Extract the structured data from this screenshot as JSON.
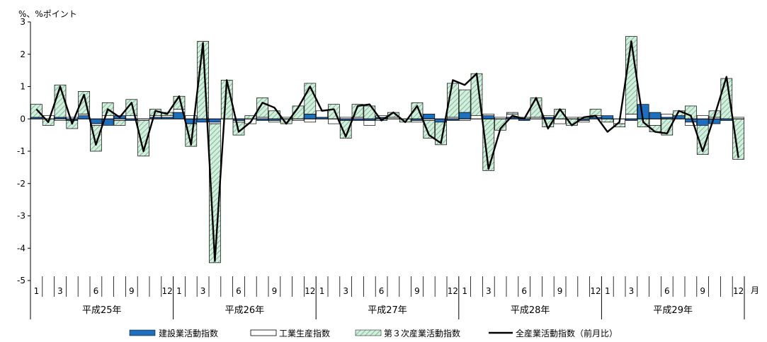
{
  "chart_data": {
    "type": "bar",
    "stacked": true,
    "unit_label": "%、%ポイント",
    "month_unit": "月",
    "ylim": [
      -5,
      3
    ],
    "y_ticks": [
      "3",
      "2",
      "1",
      "0",
      "-1",
      "-2",
      "-3",
      "-4",
      "-5"
    ],
    "month_tick_labels": [
      "1",
      "",
      "3",
      "",
      "",
      "6",
      "",
      "",
      "9",
      "",
      "",
      "12"
    ],
    "years": [
      "平成25年",
      "平成26年",
      "平成27年",
      "平成28年",
      "平成29年"
    ],
    "series": [
      {
        "name": "建設業活動指数",
        "values": [
          0.05,
          0.0,
          0.05,
          -0.05,
          0.1,
          -0.15,
          -0.2,
          0.1,
          -0.05,
          0.0,
          0.05,
          0.05,
          0.2,
          -0.15,
          -0.1,
          -0.1,
          0.0,
          -0.05,
          0.0,
          -0.05,
          -0.05,
          0.0,
          0.0,
          0.15,
          0.05,
          0.0,
          -0.05,
          -0.05,
          -0.05,
          0.05,
          0.0,
          0.0,
          -0.05,
          0.15,
          -0.1,
          -0.05,
          0.2,
          0.0,
          0.1,
          0.0,
          0.05,
          -0.05,
          0.0,
          0.05,
          0.0,
          0.0,
          -0.05,
          0.05,
          0.1,
          0.0,
          -0.05,
          0.45,
          0.2,
          0.05,
          0.1,
          -0.1,
          -0.2,
          -0.15,
          -0.05,
          0.0
        ]
      },
      {
        "name": "工業生産指数",
        "values": [
          0.0,
          0.1,
          -0.05,
          0.05,
          0.05,
          -0.05,
          0.1,
          -0.05,
          0.1,
          -0.05,
          0.05,
          0.05,
          0.1,
          0.1,
          0.0,
          -0.05,
          0.0,
          -0.05,
          -0.15,
          0.05,
          -0.05,
          0.05,
          -0.05,
          -0.1,
          0.2,
          -0.15,
          0.05,
          0.05,
          -0.15,
          0.05,
          0.05,
          0.0,
          -0.05,
          -0.05,
          0.0,
          0.05,
          -0.05,
          0.1,
          0.05,
          0.05,
          0.1,
          0.0,
          0.05,
          0.05,
          -0.15,
          0.05,
          -0.05,
          0.05,
          0.0,
          -0.15,
          0.15,
          0.0,
          -0.2,
          0.1,
          0.0,
          -0.1,
          0.1,
          0.05,
          0.0,
          0.05
        ]
      },
      {
        "name": "第３次産業活動指数",
        "values": [
          0.4,
          -0.2,
          1.0,
          -0.25,
          0.7,
          -0.8,
          0.4,
          -0.15,
          0.5,
          -1.1,
          0.2,
          0.1,
          0.4,
          -0.7,
          2.4,
          -4.3,
          1.2,
          -0.4,
          0.1,
          0.6,
          0.25,
          -0.15,
          0.4,
          0.95,
          0.0,
          0.45,
          -0.55,
          0.4,
          0.4,
          -0.05,
          0.15,
          -0.1,
          0.5,
          -0.55,
          -0.7,
          1.05,
          0.7,
          1.3,
          -1.6,
          -0.35,
          0.05,
          0.05,
          0.6,
          -0.25,
          0.3,
          -0.2,
          0.05,
          0.2,
          -0.1,
          -0.1,
          2.4,
          -0.25,
          -0.2,
          -0.5,
          0.15,
          0.4,
          -0.9,
          0.2,
          1.25,
          -1.25
        ]
      }
    ],
    "line_series": {
      "name": "全産業活動指数（前月比）",
      "values": [
        0.3,
        -0.1,
        1.0,
        -0.15,
        0.75,
        -0.8,
        0.3,
        0.05,
        0.5,
        -1.0,
        0.25,
        0.15,
        0.7,
        -0.8,
        2.35,
        -4.4,
        1.2,
        -0.4,
        -0.1,
        0.5,
        0.35,
        -0.15,
        0.35,
        1.0,
        0.25,
        0.3,
        -0.55,
        0.4,
        0.45,
        -0.05,
        0.2,
        -0.1,
        0.4,
        -0.5,
        -0.75,
        1.2,
        1.05,
        1.4,
        -1.55,
        -0.3,
        0.1,
        0.0,
        0.65,
        -0.3,
        0.3,
        -0.2,
        0.05,
        0.1,
        -0.4,
        -0.1,
        2.4,
        -0.1,
        -0.4,
        -0.45,
        0.25,
        0.1,
        -1.0,
        0.1,
        1.3,
        -1.2
      ]
    },
    "colors": {
      "construction": "#1f6fbf",
      "industrial": "#ffffff",
      "tertiary": "#d3eedd",
      "tertiary_hatch": "#5aa27a",
      "line": "#000000"
    }
  }
}
